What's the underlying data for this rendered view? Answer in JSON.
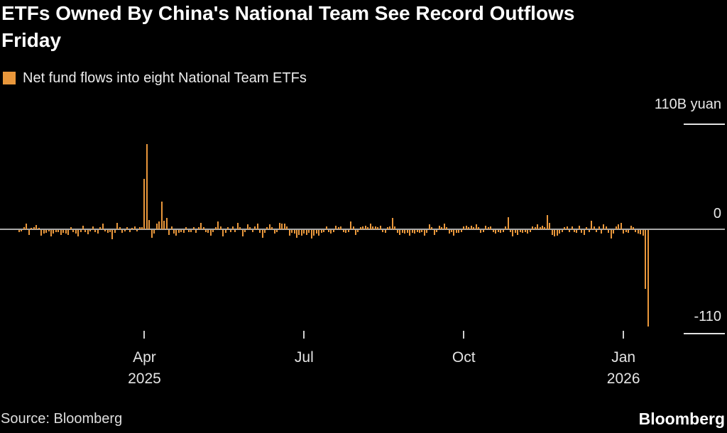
{
  "header": {
    "title": "ETFs Owned By China's National Team See Record Outflows Friday"
  },
  "legend": {
    "label": "Net fund flows into eight National Team ETFs"
  },
  "axis": {
    "top_label": "110B yuan",
    "zero_label": "0",
    "bottom_label": "-110"
  },
  "footer": {
    "source": "Source: Bloomberg",
    "logo": "Bloomberg"
  },
  "colors": {
    "background": "#000000",
    "bar": "#E9973B",
    "title_text": "#FFFFFF",
    "axis_text": "#E8E8E8",
    "zero_line": "#A8A8A8",
    "tick_line": "#E2E2E2"
  },
  "chart_data": {
    "type": "bar",
    "title": "ETFs Owned By China's National Team See Record Outflows Friday",
    "series_name": "Net fund flows into eight National Team ETFs",
    "unit": "billion yuan",
    "ylim": [
      -110,
      110
    ],
    "grid": false,
    "legend_position": "top-left",
    "y_ticks": [
      {
        "value": 110,
        "label": "110B yuan"
      },
      {
        "value": 0,
        "label": "0"
      },
      {
        "value": -110,
        "label": "-110"
      }
    ],
    "x_ticks": [
      {
        "index": 51,
        "label": "Apr",
        "sublabel": "2025"
      },
      {
        "index": 116,
        "label": "Jul",
        "sublabel": ""
      },
      {
        "index": 181,
        "label": "Oct",
        "sublabel": ""
      },
      {
        "index": 246,
        "label": "Jan",
        "sublabel": "2026"
      }
    ],
    "values": [
      -2,
      -1.5,
      2,
      6,
      -5,
      1.5,
      2,
      4.5,
      1.5,
      -6,
      -4,
      -3,
      -1.5,
      -7,
      -3.5,
      -2.5,
      -2,
      -5,
      -3,
      -4,
      -5.5,
      2.5,
      -2,
      -4,
      -6.5,
      -2,
      3.5,
      -2,
      -4.5,
      -1.5,
      3,
      -2,
      -3.5,
      2,
      6,
      -1.5,
      -3,
      -2,
      -10,
      -3,
      7,
      2,
      -3,
      -1.5,
      2.5,
      -2,
      1.5,
      3,
      -1.5,
      2,
      2,
      53,
      89,
      10,
      -8,
      -4,
      6,
      8,
      29,
      9,
      12,
      -5,
      3,
      -4,
      -6,
      -3,
      -2,
      -3,
      2,
      -2.5,
      -2,
      2,
      -3,
      2.5,
      7,
      2,
      -2,
      -3,
      -6,
      -2,
      2,
      8,
      3,
      -7,
      -3,
      2,
      -2,
      3,
      -2.5,
      7,
      2,
      -7,
      -2,
      5,
      2,
      -2,
      3,
      6,
      -3,
      -8,
      -3,
      2,
      5,
      2,
      -4,
      -2,
      7,
      6,
      6,
      3,
      -6,
      -3,
      -4,
      -8,
      -5,
      -6,
      -4,
      -5,
      -3,
      -9,
      -6,
      -4,
      -6,
      -3,
      -2,
      3,
      -2,
      -4,
      -2,
      4,
      2,
      3,
      -2,
      -3,
      -2,
      8,
      3,
      -5,
      -2,
      2,
      3,
      4,
      2,
      6,
      3,
      3,
      2,
      4,
      -2,
      -3,
      2,
      3,
      12,
      3,
      -3,
      -5,
      -3,
      -4,
      -3,
      -6,
      -3,
      -4,
      -2,
      -3,
      -2,
      -6,
      -3,
      5,
      2,
      -5,
      -2,
      4,
      2,
      6,
      2,
      -4,
      -2,
      -6,
      -3,
      -3,
      -2,
      3,
      4,
      2,
      4,
      2,
      5,
      2,
      -3,
      -2,
      4,
      2,
      3,
      -2,
      -4,
      -2,
      -3,
      -2,
      3,
      13,
      -2,
      -7,
      -3,
      -5,
      -2,
      -3,
      -2,
      -4,
      -2,
      3,
      2,
      5,
      2,
      4,
      2,
      15,
      7,
      -5,
      -7,
      -6,
      -4,
      -2,
      2,
      3,
      -2,
      3,
      -2,
      -3,
      4,
      -3,
      -5,
      2,
      -2,
      9,
      3,
      -2,
      3,
      -4,
      5,
      3,
      -3,
      -9,
      -4,
      3,
      5,
      7,
      -4,
      -2,
      -3,
      4,
      2,
      -2.5,
      -4,
      -4.5,
      -6,
      -62,
      -101
    ]
  }
}
